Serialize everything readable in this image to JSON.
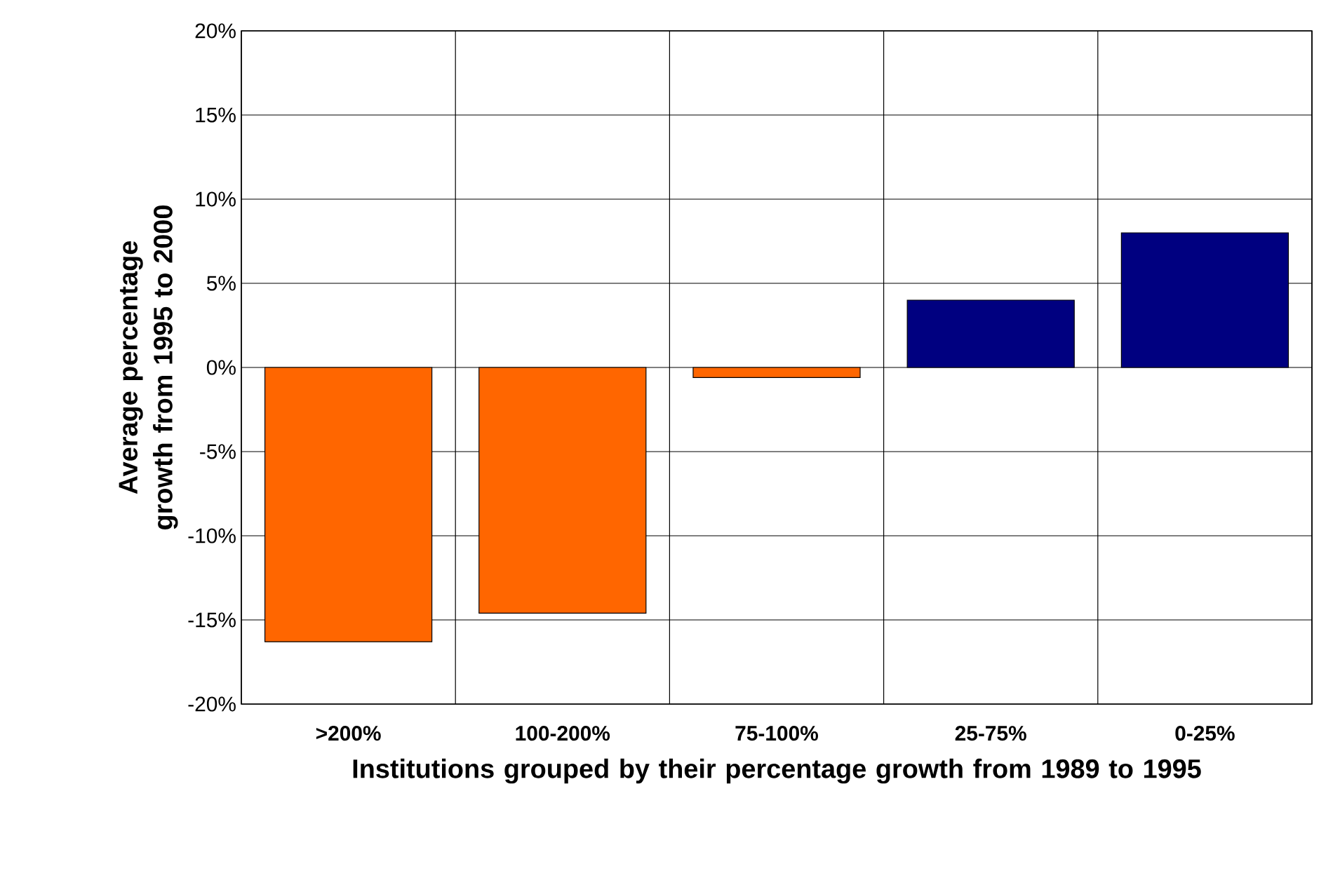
{
  "chart_data": {
    "type": "bar",
    "xlabel": "Institutions grouped by their percentage growth from 1989 to 1995",
    "ylabel": "Average percentage growth from 1995 to 2000",
    "categories": [
      ">200%",
      "100-200%",
      "75-100%",
      "25-75%",
      "0-25%"
    ],
    "values": [
      -16.3,
      -14.6,
      -0.6,
      4,
      8
    ],
    "colors": [
      "#ff6600",
      "#ff6600",
      "#ff6600",
      "#000080",
      "#000080"
    ],
    "ylim": [
      -20,
      20
    ],
    "yticks": [
      {
        "value": -20,
        "label": "-20%"
      },
      {
        "value": -15,
        "label": "-15%"
      },
      {
        "value": -10,
        "label": "-10%"
      },
      {
        "value": -5,
        "label": "-5%"
      },
      {
        "value": 0,
        "label": "0%"
      },
      {
        "value": 5,
        "label": "5%"
      },
      {
        "value": 10,
        "label": "10%"
      },
      {
        "value": 15,
        "label": "15%"
      },
      {
        "value": 20,
        "label": "20%"
      }
    ],
    "grid": true
  }
}
